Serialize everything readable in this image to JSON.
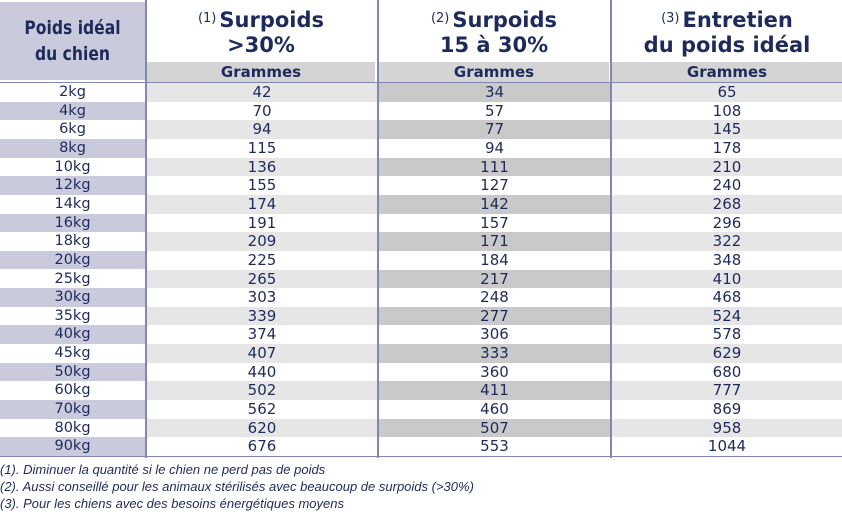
{
  "header": {
    "first_col": "Poids idéal du chien",
    "columns": [
      {
        "num": "(1)",
        "title_line1": "Surpoids",
        "title_line2": ">30%",
        "unit": "Grammes"
      },
      {
        "num": "(2)",
        "title_line1": "Surpoids",
        "title_line2": "15 à 30%",
        "unit": "Grammes"
      },
      {
        "num": "(3)",
        "title_line1": "Entretien",
        "title_line2": "du poids idéal",
        "unit": "Grammes"
      }
    ]
  },
  "rows": [
    {
      "weight": "2kg",
      "v1": "42",
      "v2": "34",
      "v3": "65"
    },
    {
      "weight": "4kg",
      "v1": "70",
      "v2": "57",
      "v3": "108"
    },
    {
      "weight": "6kg",
      "v1": "94",
      "v2": "77",
      "v3": "145"
    },
    {
      "weight": "8kg",
      "v1": "115",
      "v2": "94",
      "v3": "178"
    },
    {
      "weight": "10kg",
      "v1": "136",
      "v2": "111",
      "v3": "210"
    },
    {
      "weight": "12kg",
      "v1": "155",
      "v2": "127",
      "v3": "240"
    },
    {
      "weight": "14kg",
      "v1": "174",
      "v2": "142",
      "v3": "268"
    },
    {
      "weight": "16kg",
      "v1": "191",
      "v2": "157",
      "v3": "296"
    },
    {
      "weight": "18kg",
      "v1": "209",
      "v2": "171",
      "v3": "322"
    },
    {
      "weight": "20kg",
      "v1": "225",
      "v2": "184",
      "v3": "348"
    },
    {
      "weight": "25kg",
      "v1": "265",
      "v2": "217",
      "v3": "410"
    },
    {
      "weight": "30kg",
      "v1": "303",
      "v2": "248",
      "v3": "468"
    },
    {
      "weight": "35kg",
      "v1": "339",
      "v2": "277",
      "v3": "524"
    },
    {
      "weight": "40kg",
      "v1": "374",
      "v2": "306",
      "v3": "578"
    },
    {
      "weight": "45kg",
      "v1": "407",
      "v2": "333",
      "v3": "629"
    },
    {
      "weight": "50kg",
      "v1": "440",
      "v2": "360",
      "v3": "680"
    },
    {
      "weight": "60kg",
      "v1": "502",
      "v2": "411",
      "v3": "777"
    },
    {
      "weight": "70kg",
      "v1": "562",
      "v2": "460",
      "v3": "869"
    },
    {
      "weight": "80kg",
      "v1": "620",
      "v2": "507",
      "v3": "958"
    },
    {
      "weight": "90kg",
      "v1": "676",
      "v2": "553",
      "v3": "1044"
    }
  ],
  "notes": [
    "(1). Diminuer la quantité si le chien ne perd pas de poids",
    "(2). Aussi conseillé pour les animaux stérilisés avec beaucoup de surpoids (>30%)",
    "(3). Pour les chiens avec des besoins énergétiques moyens"
  ],
  "colors": {
    "text": "#1f2a5c",
    "band_blue": "#c9cbdc",
    "band_grey": "#e6e6e6",
    "band_grey_dark": "#c9c9c9",
    "rule": "#8088b0"
  }
}
